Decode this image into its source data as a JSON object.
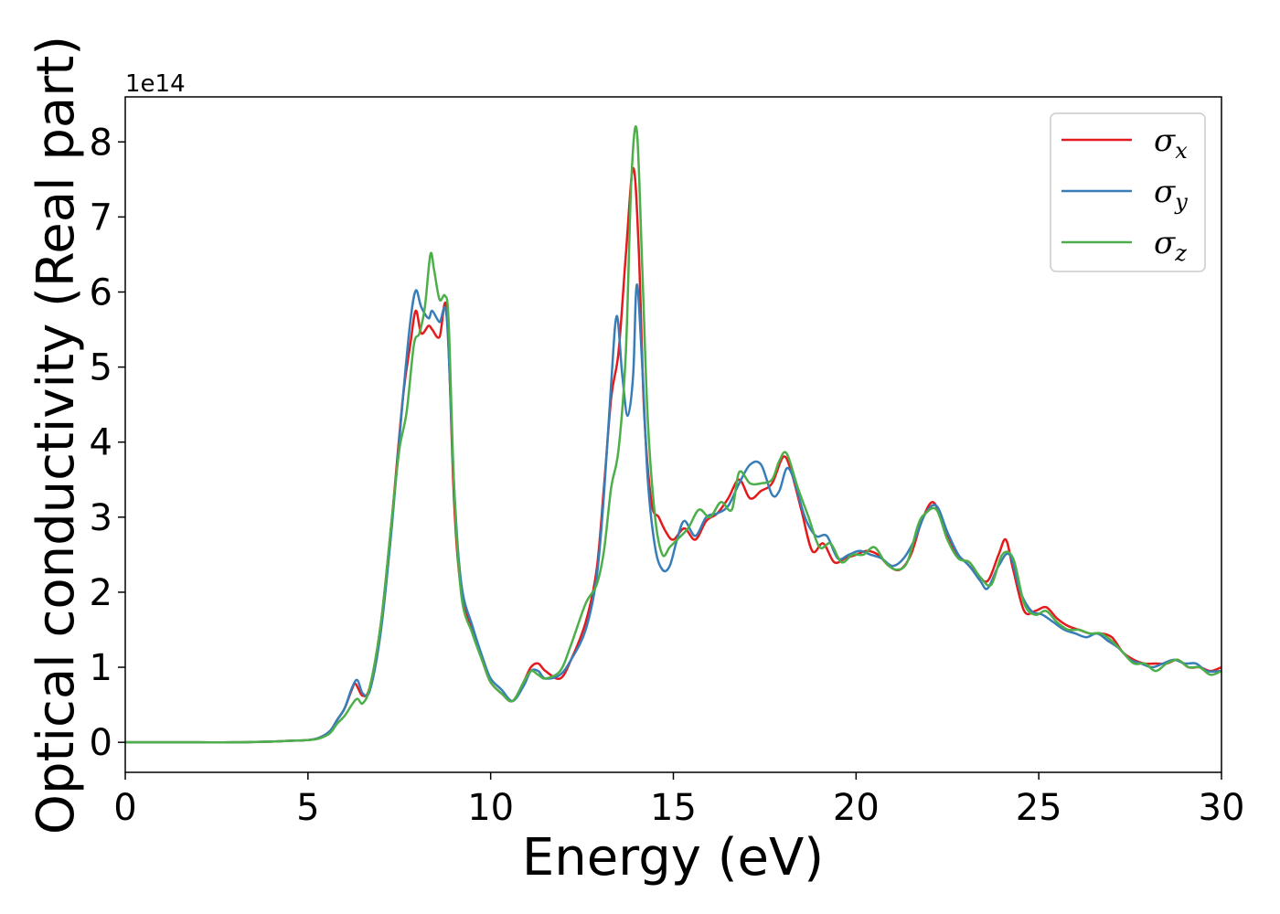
{
  "chart_data": {
    "type": "line",
    "xlabel": "Energy (eV)",
    "ylabel": "Optical conductivity (Real part)",
    "y_offset_label": "1e14",
    "y_scale_factor": 100000000000000.0,
    "xlim": [
      0,
      30
    ],
    "ylim": [
      -0.4,
      8.6
    ],
    "xticks": [
      0,
      5,
      10,
      15,
      20,
      25,
      30
    ],
    "yticks": [
      0,
      1,
      2,
      3,
      4,
      5,
      6,
      7,
      8
    ],
    "grid": false,
    "legend_position": "top-right",
    "series": [
      {
        "name": "σx",
        "symbol": "σ",
        "subscript": "x",
        "color": "#e41a1c",
        "x": [
          0,
          1,
          2,
          3,
          4,
          4.5,
          5,
          5.3,
          5.6,
          5.8,
          6.0,
          6.2,
          6.3,
          6.5,
          6.7,
          7.0,
          7.3,
          7.6,
          7.8,
          7.95,
          8.1,
          8.3,
          8.4,
          8.6,
          8.8,
          9.0,
          9.2,
          9.5,
          9.8,
          10.0,
          10.3,
          10.6,
          10.9,
          11.1,
          11.3,
          11.5,
          11.9,
          12.2,
          12.6,
          12.9,
          13.1,
          13.3,
          13.5,
          13.7,
          13.9,
          14.05,
          14.2,
          14.4,
          14.6,
          14.8,
          15.0,
          15.3,
          15.6,
          15.9,
          16.2,
          16.5,
          16.8,
          17.1,
          17.4,
          17.7,
          18.0,
          18.2,
          18.5,
          18.8,
          19.1,
          19.4,
          19.7,
          20.0,
          20.3,
          20.6,
          20.9,
          21.2,
          21.5,
          21.8,
          22.1,
          22.4,
          22.7,
          23.0,
          23.3,
          23.6,
          23.9,
          24.1,
          24.3,
          24.6,
          24.9,
          25.2,
          25.5,
          25.8,
          26.1,
          26.4,
          26.7,
          27.0,
          27.3,
          27.6,
          27.9,
          28.2,
          28.5,
          28.8,
          29.1,
          29.4,
          29.7,
          30.0
        ],
        "y": [
          0.0,
          0.0,
          0.0,
          0.0,
          0.01,
          0.02,
          0.03,
          0.06,
          0.15,
          0.3,
          0.45,
          0.7,
          0.78,
          0.62,
          0.75,
          1.6,
          3.0,
          4.6,
          5.3,
          5.75,
          5.45,
          5.55,
          5.5,
          5.4,
          5.75,
          3.2,
          2.0,
          1.5,
          1.05,
          0.8,
          0.65,
          0.55,
          0.8,
          1.0,
          1.05,
          0.95,
          0.85,
          1.1,
          1.6,
          2.3,
          3.4,
          4.6,
          5.2,
          6.5,
          7.65,
          6.6,
          4.4,
          3.2,
          3.0,
          2.8,
          2.7,
          2.85,
          2.7,
          2.95,
          3.05,
          3.25,
          3.5,
          3.25,
          3.35,
          3.45,
          3.8,
          3.65,
          3.1,
          2.55,
          2.65,
          2.4,
          2.45,
          2.5,
          2.55,
          2.5,
          2.35,
          2.3,
          2.5,
          2.95,
          3.2,
          2.9,
          2.55,
          2.4,
          2.25,
          2.15,
          2.5,
          2.7,
          2.3,
          1.75,
          1.75,
          1.8,
          1.65,
          1.55,
          1.5,
          1.45,
          1.45,
          1.4,
          1.2,
          1.1,
          1.05,
          1.05,
          1.05,
          1.1,
          1.0,
          1.0,
          0.95,
          1.0
        ]
      },
      {
        "name": "σy",
        "symbol": "σ",
        "subscript": "y",
        "color": "#377eb8",
        "x": [
          0,
          1,
          2,
          3,
          4,
          4.5,
          5,
          5.3,
          5.6,
          5.8,
          6.0,
          6.2,
          6.35,
          6.5,
          6.7,
          7.0,
          7.3,
          7.6,
          7.8,
          7.95,
          8.1,
          8.3,
          8.4,
          8.6,
          8.8,
          9.0,
          9.2,
          9.5,
          9.8,
          10.0,
          10.3,
          10.6,
          10.9,
          11.1,
          11.3,
          11.5,
          11.9,
          12.2,
          12.6,
          12.9,
          13.1,
          13.3,
          13.45,
          13.6,
          13.75,
          13.9,
          14.0,
          14.15,
          14.3,
          14.5,
          14.7,
          14.9,
          15.1,
          15.3,
          15.6,
          15.9,
          16.2,
          16.5,
          16.8,
          17.1,
          17.4,
          17.7,
          17.9,
          18.1,
          18.3,
          18.6,
          18.9,
          19.2,
          19.5,
          19.8,
          20.1,
          20.4,
          20.7,
          21.0,
          21.3,
          21.6,
          21.9,
          22.2,
          22.5,
          22.8,
          23.1,
          23.4,
          23.6,
          23.9,
          24.2,
          24.5,
          24.8,
          25.1,
          25.4,
          25.7,
          26.0,
          26.3,
          26.6,
          26.9,
          27.2,
          27.5,
          27.8,
          28.1,
          28.4,
          28.7,
          29.0,
          29.3,
          29.6,
          30.0
        ],
        "y": [
          0.0,
          0.0,
          0.0,
          0.0,
          0.01,
          0.02,
          0.03,
          0.06,
          0.15,
          0.3,
          0.45,
          0.72,
          0.83,
          0.65,
          0.7,
          1.5,
          2.9,
          4.6,
          5.6,
          6.02,
          5.8,
          5.65,
          5.75,
          5.6,
          5.65,
          3.4,
          2.1,
          1.55,
          1.1,
          0.85,
          0.7,
          0.55,
          0.75,
          0.95,
          0.95,
          0.85,
          0.9,
          1.1,
          1.5,
          2.2,
          3.3,
          4.8,
          5.68,
          4.9,
          4.35,
          4.9,
          6.1,
          5.0,
          3.5,
          2.6,
          2.3,
          2.35,
          2.7,
          2.95,
          2.75,
          3.0,
          3.05,
          3.15,
          3.45,
          3.7,
          3.7,
          3.3,
          3.35,
          3.65,
          3.5,
          3.0,
          2.75,
          2.75,
          2.45,
          2.5,
          2.55,
          2.5,
          2.45,
          2.35,
          2.45,
          2.7,
          3.05,
          3.15,
          2.8,
          2.5,
          2.35,
          2.15,
          2.05,
          2.35,
          2.5,
          2.0,
          1.75,
          1.7,
          1.6,
          1.5,
          1.45,
          1.4,
          1.45,
          1.35,
          1.25,
          1.1,
          1.05,
          1.0,
          1.05,
          1.1,
          1.05,
          1.05,
          0.95,
          0.95
        ]
      },
      {
        "name": "σz",
        "symbol": "σ",
        "subscript": "z",
        "color": "#4daf4a",
        "x": [
          0,
          1,
          2,
          3,
          4,
          4.5,
          5,
          5.3,
          5.6,
          5.8,
          6.0,
          6.2,
          6.35,
          6.5,
          6.7,
          7.0,
          7.3,
          7.5,
          7.7,
          7.9,
          8.05,
          8.2,
          8.35,
          8.45,
          8.6,
          8.75,
          8.85,
          9.0,
          9.2,
          9.5,
          9.8,
          10.0,
          10.3,
          10.6,
          10.9,
          11.1,
          11.3,
          11.5,
          11.9,
          12.2,
          12.6,
          12.9,
          13.1,
          13.3,
          13.5,
          13.7,
          13.85,
          14.0,
          14.15,
          14.3,
          14.5,
          14.7,
          14.9,
          15.1,
          15.4,
          15.7,
          16.0,
          16.3,
          16.6,
          16.8,
          17.1,
          17.4,
          17.7,
          17.9,
          18.1,
          18.4,
          18.7,
          19.0,
          19.3,
          19.6,
          19.9,
          20.2,
          20.5,
          20.8,
          21.1,
          21.4,
          21.7,
          21.9,
          22.2,
          22.5,
          22.8,
          23.1,
          23.4,
          23.7,
          24.0,
          24.3,
          24.6,
          24.9,
          25.2,
          25.5,
          25.8,
          26.1,
          26.4,
          26.7,
          27.0,
          27.3,
          27.6,
          27.9,
          28.2,
          28.5,
          28.8,
          29.1,
          29.4,
          29.7,
          30.0
        ],
        "y": [
          0.0,
          0.0,
          0.0,
          0.0,
          0.01,
          0.02,
          0.03,
          0.05,
          0.12,
          0.25,
          0.35,
          0.5,
          0.58,
          0.52,
          0.75,
          1.6,
          3.0,
          3.9,
          4.4,
          5.3,
          5.45,
          5.8,
          6.5,
          6.3,
          5.9,
          5.95,
          5.6,
          3.4,
          1.95,
          1.45,
          1.05,
          0.8,
          0.65,
          0.55,
          0.8,
          0.95,
          0.9,
          0.85,
          0.95,
          1.3,
          1.85,
          2.1,
          2.55,
          3.4,
          3.9,
          5.2,
          7.5,
          8.15,
          6.3,
          4.3,
          3.0,
          2.5,
          2.6,
          2.7,
          2.85,
          3.1,
          3.0,
          3.2,
          3.1,
          3.6,
          3.45,
          3.45,
          3.5,
          3.75,
          3.85,
          3.4,
          3.0,
          2.6,
          2.65,
          2.4,
          2.5,
          2.5,
          2.6,
          2.4,
          2.3,
          2.4,
          2.9,
          3.05,
          3.1,
          2.7,
          2.45,
          2.4,
          2.2,
          2.1,
          2.5,
          2.45,
          1.85,
          1.7,
          1.75,
          1.6,
          1.5,
          1.5,
          1.45,
          1.45,
          1.35,
          1.2,
          1.05,
          1.05,
          0.95,
          1.05,
          1.1,
          1.0,
          1.0,
          0.9,
          0.95
        ]
      }
    ]
  }
}
